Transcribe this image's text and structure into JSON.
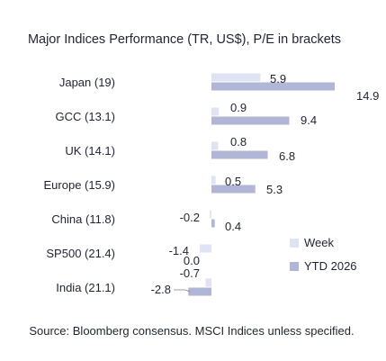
{
  "chart_data": {
    "type": "bar",
    "orientation": "horizontal",
    "title": "Major Indices Performance (TR, US$), P/E in brackets",
    "categories": [
      "Japan (19)",
      "GCC (13.1)",
      "UK (14.1)",
      "Europe (15.9)",
      "China (11.8)",
      "SP500 (21.4)",
      "India (21.1)"
    ],
    "series": [
      {
        "name": "Week",
        "values": [
          5.9,
          0.9,
          0.8,
          0.5,
          -0.2,
          -1.4,
          -0.7
        ],
        "color": "#dfe3f4"
      },
      {
        "name": "YTD 2026",
        "values": [
          14.9,
          9.4,
          6.8,
          5.3,
          0.4,
          0.0,
          -2.8
        ],
        "color": "#b1b6d6"
      }
    ],
    "value_labels": {
      "Week": [
        "5.9",
        "0.9",
        "0.8",
        "0.5",
        "-0.2",
        "-1.4",
        "-0.7"
      ],
      "YTD 2026": [
        "14.9",
        "9.4",
        "6.8",
        "5.3",
        "0.4",
        "0.0",
        "-2.8"
      ]
    },
    "xlim": [
      -3,
      15
    ],
    "grid": false,
    "legend_position": "bottom-right"
  },
  "footer": {
    "source": "Source: Bloomberg consensus. MSCI Indices unless specified."
  }
}
